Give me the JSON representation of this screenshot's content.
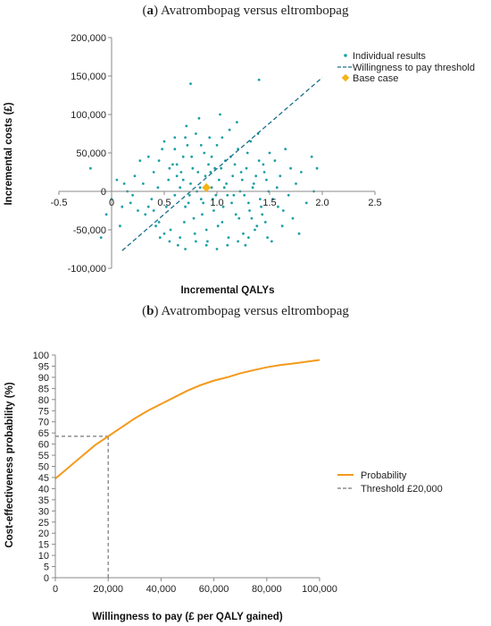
{
  "panels": [
    {
      "prefix": "(",
      "letter": "a",
      "suffix": ") Avatrombopag versus eltrombopag"
    },
    {
      "prefix": "(",
      "letter": "b",
      "suffix": ") Avatrombopag versus eltrombopag"
    }
  ],
  "colors": {
    "scatter": "#1a9fa6",
    "wtp_line": "#1a6f8a",
    "base_case": "#f5b416",
    "probability": "#f39a1b",
    "threshold": "#777777",
    "axis": "#888888"
  },
  "chart_data": [
    {
      "type": "scatter",
      "xlabel": "Incremental QALYs",
      "ylabel": "Incremental costs (£)",
      "xlim": [
        -0.5,
        2.5
      ],
      "ylim": [
        -100000,
        200000
      ],
      "x_ticks": [
        "-0.5",
        "0",
        "0.5",
        "1.0",
        "1.5",
        "2.0",
        "2.5"
      ],
      "x_tick_values": [
        -0.5,
        0,
        0.5,
        1.0,
        1.5,
        2.0,
        2.5
      ],
      "y_ticks": [
        "-100,000",
        "-50,000",
        "0",
        "50,000",
        "100,000",
        "150,000",
        "200,000"
      ],
      "y_tick_values": [
        -100000,
        -50000,
        0,
        50000,
        100000,
        150000,
        200000
      ],
      "legend": [
        "Individual results",
        "Willingness to pay threshold",
        "Base case"
      ],
      "legend_position": "right",
      "grid": false,
      "series": [
        {
          "name": "Individual results",
          "points": [
            [
              0.45,
              40000
            ],
            [
              0.5,
              65000
            ],
            [
              0.55,
              30000
            ],
            [
              0.6,
              70000
            ],
            [
              0.62,
              20000
            ],
            [
              0.65,
              5000
            ],
            [
              0.68,
              45000
            ],
            [
              0.7,
              -20000
            ],
            [
              0.72,
              60000
            ],
            [
              0.75,
              10000
            ],
            [
              0.78,
              -35000
            ],
            [
              0.8,
              75000
            ],
            [
              0.82,
              25000
            ],
            [
              0.85,
              -10000
            ],
            [
              0.88,
              50000
            ],
            [
              0.9,
              -50000
            ],
            [
              0.92,
              35000
            ],
            [
              0.95,
              5000
            ],
            [
              0.97,
              -25000
            ],
            [
              1.0,
              60000
            ],
            [
              1.02,
              15000
            ],
            [
              1.05,
              -40000
            ],
            [
              1.08,
              40000
            ],
            [
              1.1,
              -5000
            ],
            [
              1.12,
              80000
            ],
            [
              1.15,
              20000
            ],
            [
              1.18,
              -30000
            ],
            [
              1.2,
              55000
            ],
            [
              1.22,
              0
            ],
            [
              1.25,
              -55000
            ],
            [
              1.28,
              30000
            ],
            [
              1.3,
              -15000
            ],
            [
              1.32,
              65000
            ],
            [
              1.35,
              10000
            ],
            [
              1.38,
              -45000
            ],
            [
              1.4,
              40000
            ],
            [
              1.42,
              -20000
            ],
            [
              1.45,
              25000
            ],
            [
              1.48,
              -60000
            ],
            [
              1.5,
              50000
            ],
            [
              0.3,
              10000
            ],
            [
              0.32,
              -30000
            ],
            [
              0.35,
              45000
            ],
            [
              0.38,
              -10000
            ],
            [
              0.4,
              25000
            ],
            [
              0.42,
              -45000
            ],
            [
              0.44,
              5000
            ],
            [
              0.46,
              -60000
            ],
            [
              0.48,
              55000
            ],
            [
              0.52,
              -20000
            ],
            [
              0.54,
              15000
            ],
            [
              0.56,
              -50000
            ],
            [
              0.58,
              35000
            ],
            [
              0.6,
              -5000
            ],
            [
              0.63,
              -70000
            ],
            [
              0.66,
              25000
            ],
            [
              0.69,
              -40000
            ],
            [
              0.71,
              85000
            ],
            [
              0.73,
              -15000
            ],
            [
              0.76,
              45000
            ],
            [
              0.79,
              -55000
            ],
            [
              0.81,
              0
            ],
            [
              0.83,
              95000
            ],
            [
              0.86,
              -30000
            ],
            [
              0.89,
              20000
            ],
            [
              0.91,
              -65000
            ],
            [
              0.93,
              70000
            ],
            [
              0.96,
              -10000
            ],
            [
              0.98,
              30000
            ],
            [
              1.01,
              -45000
            ],
            [
              1.03,
              100000
            ],
            [
              1.06,
              -20000
            ],
            [
              1.09,
              10000
            ],
            [
              1.11,
              -60000
            ],
            [
              1.13,
              45000
            ],
            [
              1.16,
              -5000
            ],
            [
              1.19,
              90000
            ],
            [
              1.21,
              -35000
            ],
            [
              1.24,
              15000
            ],
            [
              1.27,
              -70000
            ],
            [
              1.29,
              50000
            ],
            [
              1.31,
              -25000
            ],
            [
              1.34,
              5000
            ],
            [
              1.36,
              -50000
            ],
            [
              1.39,
              75000
            ],
            [
              1.41,
              -10000
            ],
            [
              1.44,
              35000
            ],
            [
              1.46,
              -40000
            ],
            [
              1.49,
              0
            ],
            [
              1.52,
              -65000
            ],
            [
              1.55,
              40000
            ],
            [
              1.58,
              -20000
            ],
            [
              1.6,
              20000
            ],
            [
              1.62,
              -45000
            ],
            [
              1.65,
              55000
            ],
            [
              1.68,
              -5000
            ],
            [
              1.7,
              30000
            ],
            [
              1.72,
              -35000
            ],
            [
              1.75,
              10000
            ],
            [
              1.78,
              -55000
            ],
            [
              0.2,
              -5000
            ],
            [
              0.22,
              20000
            ],
            [
              0.25,
              -25000
            ],
            [
              0.27,
              40000
            ],
            [
              0.15,
              0
            ],
            [
              0.18,
              -15000
            ],
            [
              0.12,
              10000
            ],
            [
              0.1,
              -20000
            ],
            [
              -0.05,
              -30000
            ],
            [
              0.05,
              15000
            ],
            [
              -0.2,
              30000
            ],
            [
              -0.1,
              -60000
            ],
            [
              0.08,
              -45000
            ],
            [
              0.0,
              -10000
            ],
            [
              1.8,
              25000
            ],
            [
              1.85,
              -15000
            ],
            [
              1.9,
              45000
            ],
            [
              1.95,
              30000
            ],
            [
              1.92,
              0
            ],
            [
              0.75,
              140000
            ],
            [
              1.4,
              145000
            ],
            [
              0.7,
              70000
            ],
            [
              0.6,
              55000
            ],
            [
              0.85,
              60000
            ],
            [
              0.95,
              45000
            ],
            [
              1.05,
              70000
            ],
            [
              0.65,
              -60000
            ],
            [
              0.8,
              -65000
            ],
            [
              0.9,
              -70000
            ],
            [
              1.0,
              -75000
            ],
            [
              0.7,
              -75000
            ],
            [
              1.1,
              -70000
            ],
            [
              1.2,
              -65000
            ],
            [
              1.3,
              -60000
            ],
            [
              0.55,
              -65000
            ],
            [
              0.5,
              -55000
            ],
            [
              0.45,
              -40000
            ],
            [
              0.4,
              -25000
            ],
            [
              0.35,
              -20000
            ],
            [
              0.62,
              35000
            ],
            [
              0.68,
              15000
            ],
            [
              0.74,
              -5000
            ],
            [
              0.77,
              30000
            ],
            [
              0.84,
              5000
            ],
            [
              0.87,
              -15000
            ],
            [
              0.94,
              25000
            ],
            [
              0.99,
              -5000
            ],
            [
              1.04,
              30000
            ],
            [
              1.07,
              5000
            ],
            [
              1.14,
              -15000
            ],
            [
              1.17,
              35000
            ],
            [
              1.23,
              25000
            ],
            [
              1.26,
              -5000
            ],
            [
              1.33,
              -35000
            ],
            [
              1.37,
              20000
            ],
            [
              1.43,
              -30000
            ],
            [
              1.47,
              15000
            ],
            [
              1.53,
              -10000
            ],
            [
              1.57,
              5000
            ],
            [
              1.63,
              -25000
            ]
          ]
        },
        {
          "name": "Willingness to pay threshold",
          "line": [
            [
              0.1,
              -77000
            ],
            [
              2.0,
              148000
            ]
          ]
        },
        {
          "name": "Base case",
          "points": [
            [
              0.9,
              5000
            ]
          ]
        }
      ]
    },
    {
      "type": "line",
      "xlabel": "Willingness to pay (£ per QALY gained)",
      "ylabel": "Cost-effectiveness probability (%)",
      "xlim": [
        0,
        100000
      ],
      "ylim": [
        0,
        100
      ],
      "x_ticks": [
        "0",
        "20,000",
        "40,000",
        "60,000",
        "80,000",
        "100,000"
      ],
      "x_tick_values": [
        0,
        20000,
        40000,
        60000,
        80000,
        100000
      ],
      "y_ticks": [
        "0",
        "5",
        "10",
        "15",
        "20",
        "25",
        "30",
        "35",
        "40",
        "45",
        "50",
        "55",
        "60",
        "65",
        "70",
        "75",
        "80",
        "85",
        "90",
        "95",
        "100"
      ],
      "y_tick_values": [
        0,
        5,
        10,
        15,
        20,
        25,
        30,
        35,
        40,
        45,
        50,
        55,
        60,
        65,
        70,
        75,
        80,
        85,
        90,
        95,
        100
      ],
      "legend": [
        "Probability",
        "Threshold £20,000"
      ],
      "legend_position": "right",
      "grid": false,
      "series": [
        {
          "name": "Probability",
          "x": [
            0,
            5000,
            10000,
            15000,
            20000,
            25000,
            30000,
            35000,
            40000,
            45000,
            50000,
            55000,
            60000,
            65000,
            70000,
            75000,
            80000,
            85000,
            90000,
            95000,
            100000
          ],
          "values": [
            44.5,
            49.5,
            54.5,
            59.5,
            63.5,
            67.5,
            71.5,
            75,
            78,
            81,
            84,
            86.5,
            88.5,
            90,
            91.8,
            93.2,
            94.5,
            95.5,
            96.2,
            97,
            97.8
          ]
        },
        {
          "name": "Threshold £20,000",
          "threshold_x": 20000,
          "threshold_y": 63.5
        }
      ]
    }
  ]
}
